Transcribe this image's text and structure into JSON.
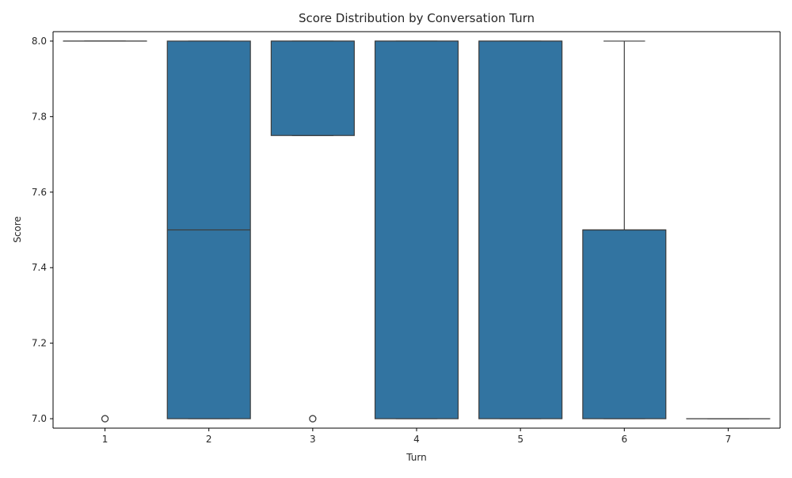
{
  "chart_data": {
    "type": "box",
    "title": "Score Distribution by Conversation Turn",
    "xlabel": "Turn",
    "ylabel": "Score",
    "categories": [
      "1",
      "2",
      "3",
      "4",
      "5",
      "6",
      "7"
    ],
    "ylim": [
      6.975,
      8.025
    ],
    "yticks": [
      7.0,
      7.2,
      7.4,
      7.6,
      7.8,
      8.0
    ],
    "ytick_labels": [
      "7.0",
      "7.2",
      "7.4",
      "7.6",
      "7.8",
      "8.0"
    ],
    "grid": false,
    "legend": "none",
    "box_color": "#3274a1",
    "line_color": "#3c3c3c",
    "series": [
      {
        "category": "1",
        "q1": 8.0,
        "median": 8.0,
        "q3": 8.0,
        "whisker_low": 8.0,
        "whisker_high": 8.0,
        "outliers": [
          7.0
        ]
      },
      {
        "category": "2",
        "q1": 7.0,
        "median": 7.5,
        "q3": 8.0,
        "whisker_low": 7.0,
        "whisker_high": 8.0,
        "outliers": []
      },
      {
        "category": "3",
        "q1": 7.75,
        "median": 8.0,
        "q3": 8.0,
        "whisker_low": 7.75,
        "whisker_high": 8.0,
        "outliers": [
          7.0
        ]
      },
      {
        "category": "4",
        "q1": 7.0,
        "median": 8.0,
        "q3": 8.0,
        "whisker_low": 7.0,
        "whisker_high": 8.0,
        "outliers": []
      },
      {
        "category": "5",
        "q1": 7.0,
        "median": 8.0,
        "q3": 8.0,
        "whisker_low": 7.0,
        "whisker_high": 8.0,
        "outliers": []
      },
      {
        "category": "6",
        "q1": 7.0,
        "median": 7.5,
        "q3": 7.5,
        "whisker_low": 7.0,
        "whisker_high": 8.0,
        "outliers": []
      },
      {
        "category": "7",
        "q1": 7.0,
        "median": 7.0,
        "q3": 7.0,
        "whisker_low": 7.0,
        "whisker_high": 7.0,
        "outliers": []
      }
    ]
  }
}
